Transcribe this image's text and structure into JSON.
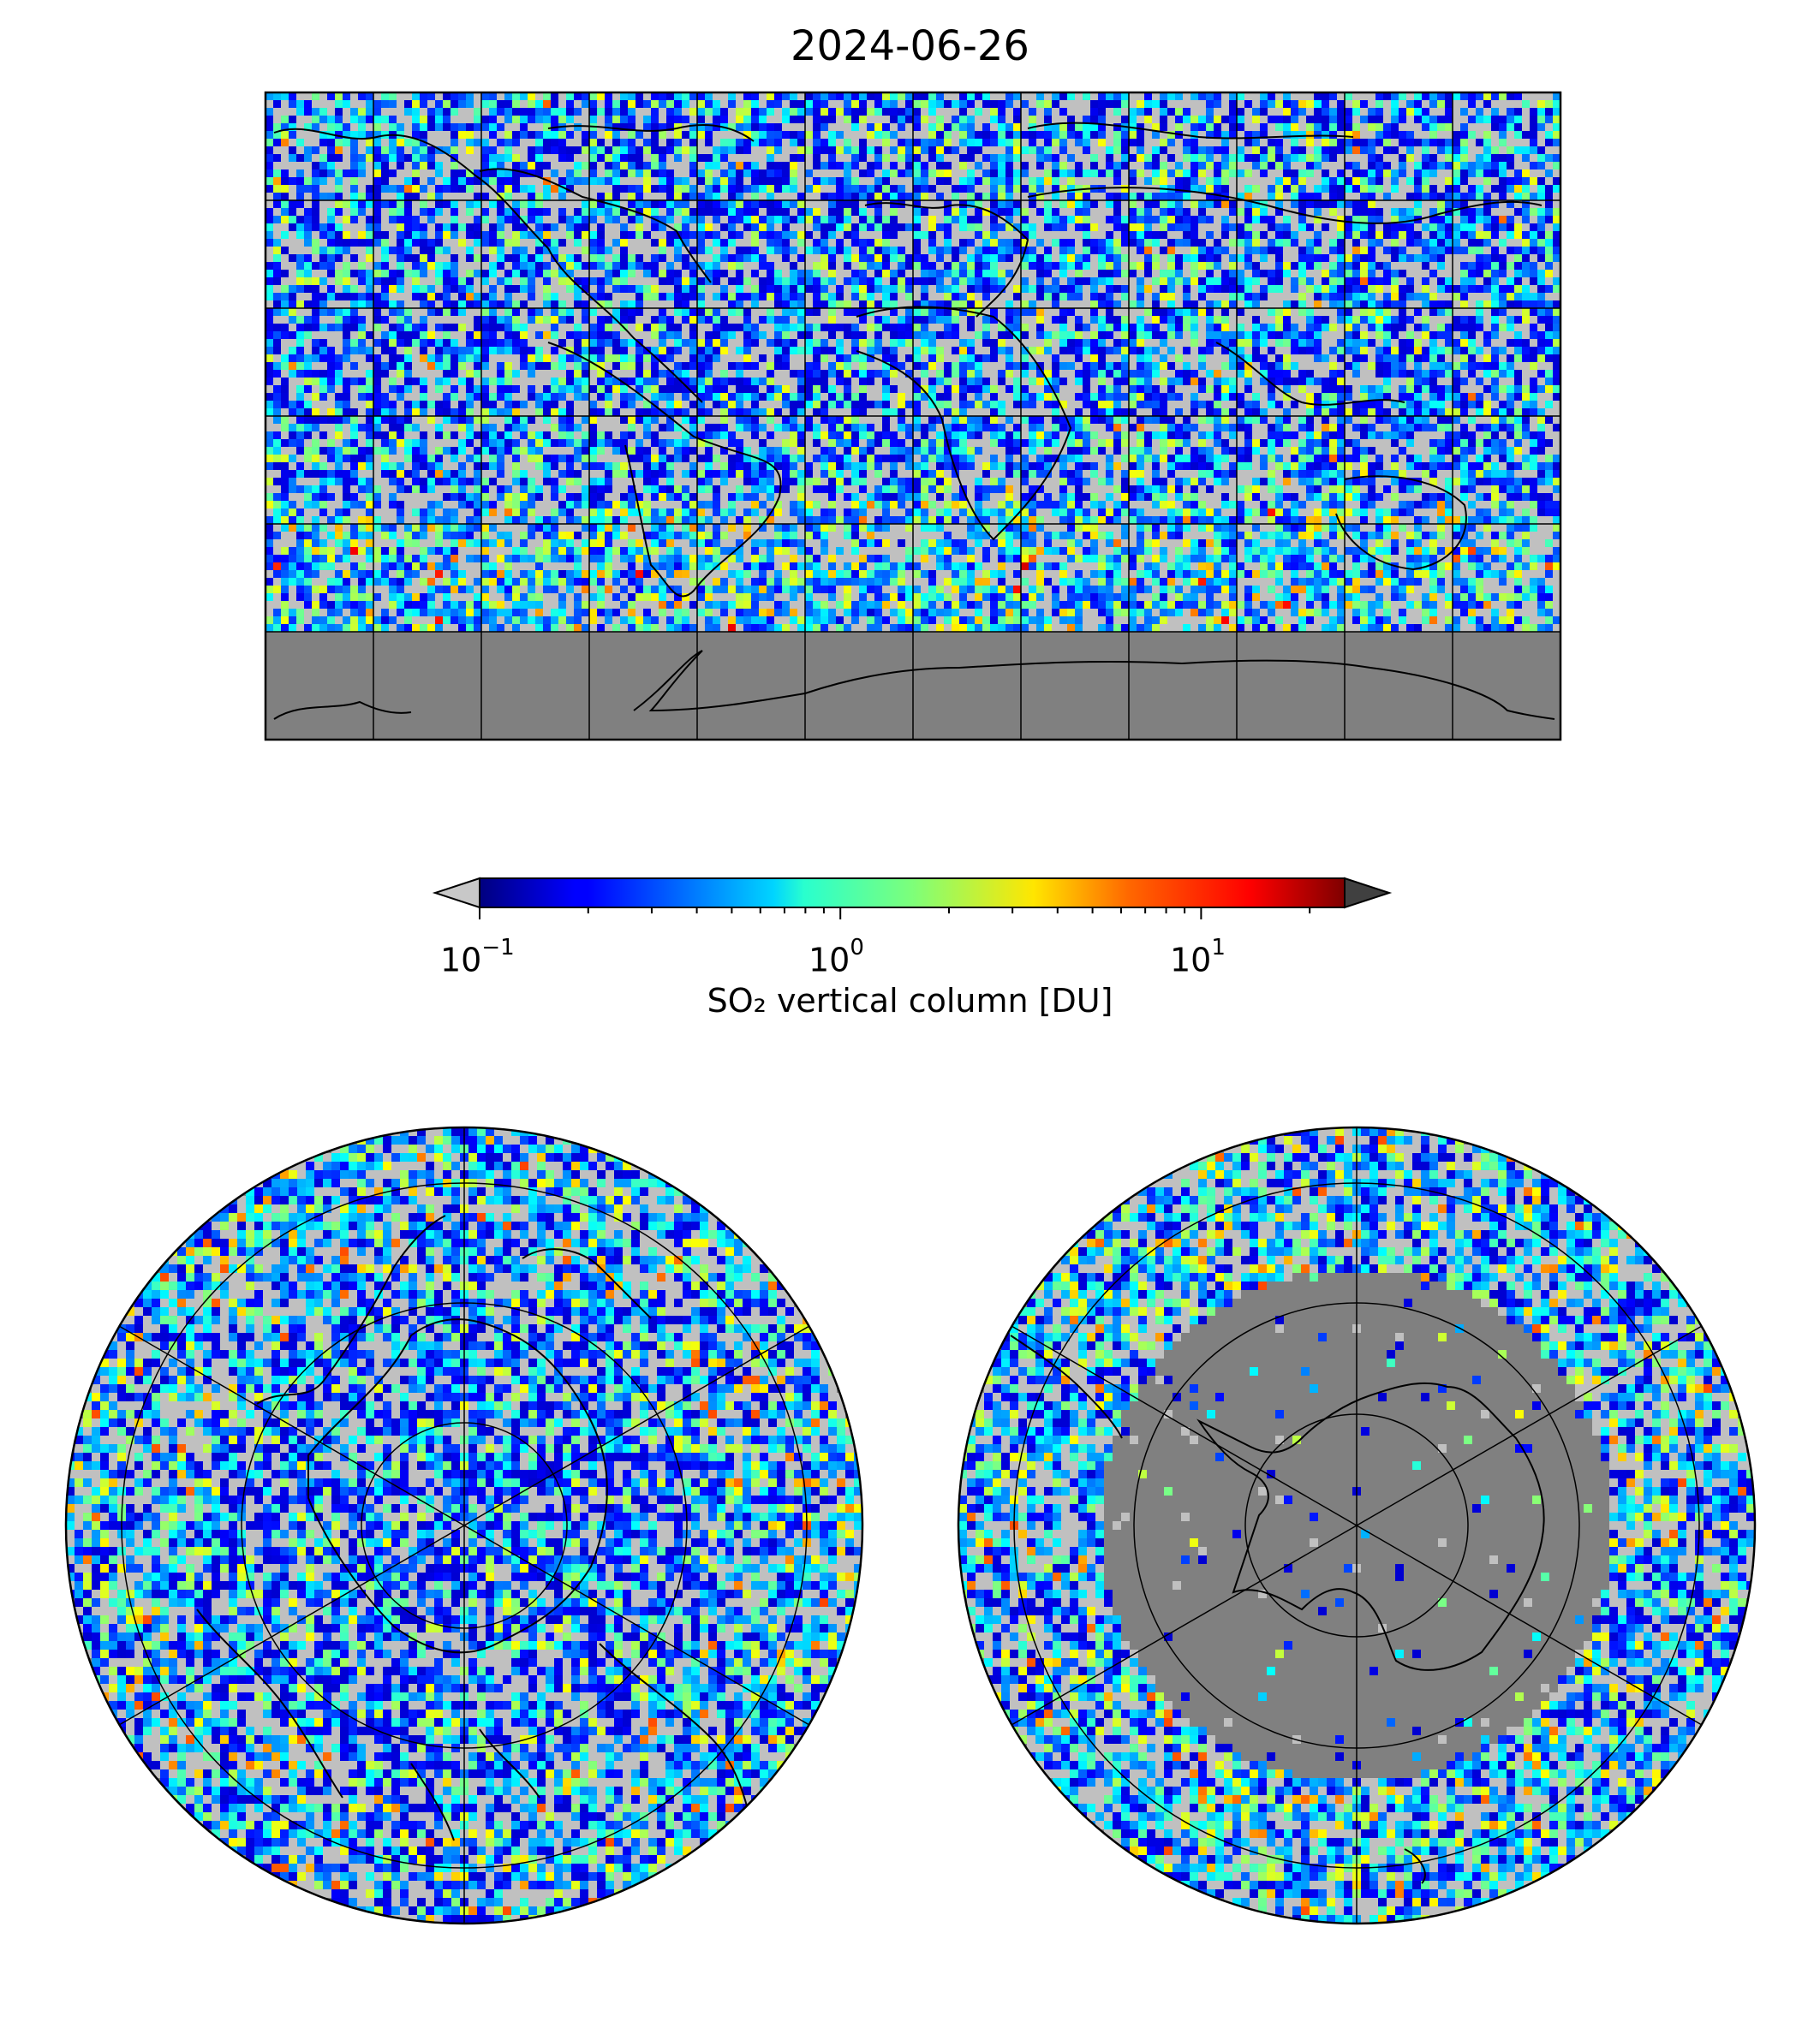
{
  "title": "2024-06-26",
  "colorbar": {
    "label": "SO₂ vertical column [DU]",
    "scale": "log",
    "range": [
      0.1,
      25
    ],
    "colormap": "jet",
    "extend": "both",
    "under_color": "#c8c8c8",
    "over_color": "#404040",
    "ticks": [
      {
        "base": "10",
        "exp": "−1",
        "value": 0.1
      },
      {
        "base": "10",
        "exp": "0",
        "value": 1
      },
      {
        "base": "10",
        "exp": "1",
        "value": 10
      }
    ]
  },
  "maps": [
    {
      "name": "global",
      "projection": "plate-carree",
      "gridlines": true,
      "land_color": "#808080"
    },
    {
      "name": "north-polar",
      "projection": "north-polar-stereographic",
      "gridlines": true
    },
    {
      "name": "south-polar",
      "projection": "south-polar-stereographic",
      "gridlines": true
    }
  ],
  "colors": {
    "missing": "#808080",
    "below_min": "#c0c0c0"
  }
}
